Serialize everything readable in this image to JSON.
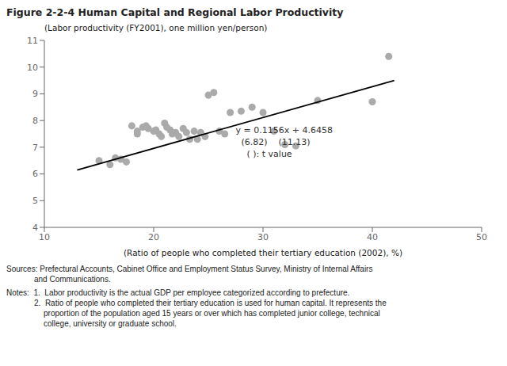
{
  "chart_data": {
    "type": "scatter",
    "title": "Figure 2-2-4    Human Capital and Regional Labor Productivity",
    "y_label": "(Labor productivity (FY2001), one million yen/person)",
    "x_label": "(Ratio of people who completed their tertiary education (2002), %)",
    "xlim": [
      10,
      50
    ],
    "ylim": [
      4,
      11
    ],
    "xticks": [
      10,
      20,
      30,
      40,
      50
    ],
    "yticks": [
      4,
      5,
      6,
      7,
      8,
      9,
      10,
      11
    ],
    "color": "#aaaaaa",
    "x": [
      15,
      16,
      16.5,
      17,
      17.5,
      18,
      18.5,
      18.5,
      19,
      19.3,
      19.5,
      20,
      20.2,
      20.5,
      20.7,
      21,
      21.2,
      21.5,
      21.7,
      22,
      22.3,
      22.7,
      23,
      23.3,
      23.7,
      24,
      24.3,
      24.7,
      25,
      25.5,
      26,
      26.5,
      27,
      28,
      29,
      30,
      31,
      32,
      33,
      35,
      40,
      41.5
    ],
    "y": [
      6.5,
      6.35,
      6.6,
      6.55,
      6.45,
      7.8,
      7.6,
      7.5,
      7.75,
      7.8,
      7.7,
      7.6,
      7.65,
      7.5,
      7.4,
      7.9,
      7.75,
      7.65,
      7.5,
      7.55,
      7.4,
      7.7,
      7.55,
      7.3,
      7.6,
      7.3,
      7.55,
      7.4,
      8.95,
      9.05,
      7.6,
      7.5,
      8.3,
      8.35,
      8.5,
      8.3,
      7.6,
      7.1,
      7.05,
      8.75,
      8.7,
      10.4
    ],
    "line": {
      "type": "line",
      "color": "#000000",
      "x": [
        13,
        42
      ],
      "y": [
        6.1486,
        9.501
      ]
    },
    "annotations": [
      {
        "text": [
          "y = 0.1156x + 4.6458",
          "  (6.82)    (11.13)",
          "    ( ): t value"
        ],
        "x": 27.5,
        "y": 6.55
      }
    ],
    "sources": [
      "Sources: Prefectural Accounts, Cabinet Office and Employment Status Survey, Ministry of Internal Affairs",
      "and Communications."
    ],
    "notes": [
      "Notes:  1.  Labor productivity is the actual GDP per employee categorized according to prefecture.",
      "2.  Ratio of people who completed their tertiary education is used for human capital. It represents the",
      "proportion of the population aged 15 years or over which has completed junior college, technical",
      "college, university or graduate school."
    ]
  }
}
